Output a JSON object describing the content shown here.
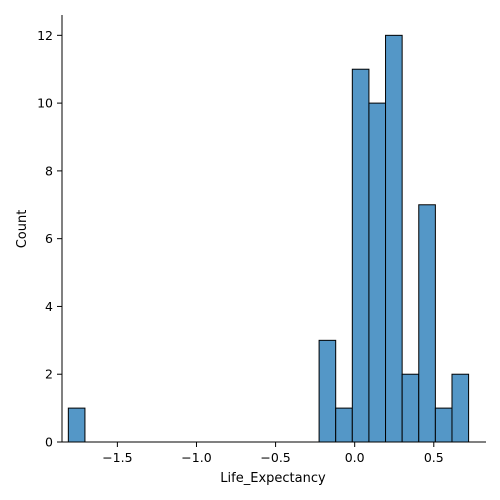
{
  "chart_data": {
    "type": "bar",
    "subtype": "histogram",
    "xlabel": "Life_Expectancy",
    "ylabel": "Count",
    "bar_color": "#5497c7",
    "xlim": [
      -1.85,
      0.83
    ],
    "ylim": [
      0,
      12.6
    ],
    "xticks": [
      -1.5,
      -1.0,
      -0.5,
      0.0,
      0.5
    ],
    "xtick_labels": [
      "−1.5",
      "−1.0",
      "−0.5",
      "0.0",
      "0.5"
    ],
    "yticks": [
      0,
      2,
      4,
      6,
      8,
      10,
      12
    ],
    "ytick_labels": [
      "0",
      "2",
      "4",
      "6",
      "8",
      "10",
      "12"
    ],
    "bins": [
      {
        "x0": -1.81,
        "x1": -1.705,
        "count": 1
      },
      {
        "x0": -0.225,
        "x1": -0.12,
        "count": 3
      },
      {
        "x0": -0.12,
        "x1": -0.015,
        "count": 1
      },
      {
        "x0": -0.015,
        "x1": 0.09,
        "count": 11
      },
      {
        "x0": 0.09,
        "x1": 0.195,
        "count": 10
      },
      {
        "x0": 0.195,
        "x1": 0.3,
        "count": 12
      },
      {
        "x0": 0.3,
        "x1": 0.405,
        "count": 2
      },
      {
        "x0": 0.405,
        "x1": 0.51,
        "count": 7
      },
      {
        "x0": 0.51,
        "x1": 0.615,
        "count": 1
      },
      {
        "x0": 0.615,
        "x1": 0.72,
        "count": 2
      }
    ],
    "grid": false,
    "legend": "none"
  }
}
